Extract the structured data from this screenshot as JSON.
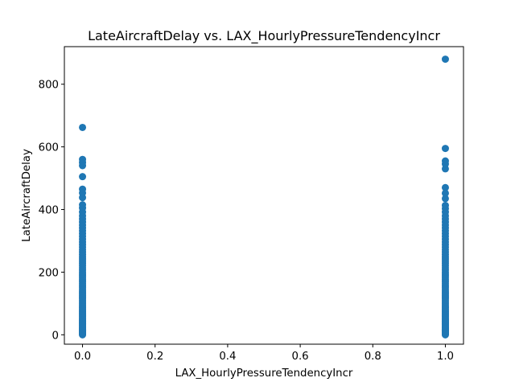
{
  "chart_data": {
    "type": "scatter",
    "title": "LateAircraftDelay vs. LAX_HourlyPressureTendencyIncr",
    "xlabel": "LAX_HourlyPressureTendencyIncr",
    "ylabel": "LateAircraftDelay",
    "xlim": [
      -0.05,
      1.05
    ],
    "ylim": [
      -30,
      920
    ],
    "xticks": [
      0.0,
      0.2,
      0.4,
      0.6,
      0.8,
      1.0
    ],
    "xtick_labels": [
      "0.0",
      "0.2",
      "0.4",
      "0.6",
      "0.8",
      "1.0"
    ],
    "yticks": [
      0,
      200,
      400,
      600,
      800
    ],
    "ytick_labels": [
      "0",
      "200",
      "400",
      "600",
      "800"
    ],
    "grid": false,
    "marker_color": "#1f77b4",
    "series": [
      {
        "x_values": [
          0,
          1
        ],
        "points": [
          [
            0,
            0
          ],
          [
            0,
            2
          ],
          [
            0,
            4
          ],
          [
            0,
            6
          ],
          [
            0,
            8
          ],
          [
            0,
            10
          ],
          [
            0,
            12
          ],
          [
            0,
            14
          ],
          [
            0,
            16
          ],
          [
            0,
            18
          ],
          [
            0,
            20
          ],
          [
            0,
            23
          ],
          [
            0,
            26
          ],
          [
            0,
            29
          ],
          [
            0,
            32
          ],
          [
            0,
            35
          ],
          [
            0,
            38
          ],
          [
            0,
            41
          ],
          [
            0,
            44
          ],
          [
            0,
            47
          ],
          [
            0,
            50
          ],
          [
            0,
            54
          ],
          [
            0,
            58
          ],
          [
            0,
            62
          ],
          [
            0,
            66
          ],
          [
            0,
            70
          ],
          [
            0,
            74
          ],
          [
            0,
            78
          ],
          [
            0,
            82
          ],
          [
            0,
            86
          ],
          [
            0,
            90
          ],
          [
            0,
            95
          ],
          [
            0,
            100
          ],
          [
            0,
            105
          ],
          [
            0,
            110
          ],
          [
            0,
            115
          ],
          [
            0,
            120
          ],
          [
            0,
            125
          ],
          [
            0,
            130
          ],
          [
            0,
            135
          ],
          [
            0,
            140
          ],
          [
            0,
            146
          ],
          [
            0,
            152
          ],
          [
            0,
            158
          ],
          [
            0,
            164
          ],
          [
            0,
            170
          ],
          [
            0,
            176
          ],
          [
            0,
            182
          ],
          [
            0,
            188
          ],
          [
            0,
            194
          ],
          [
            0,
            200
          ],
          [
            0,
            207
          ],
          [
            0,
            214
          ],
          [
            0,
            221
          ],
          [
            0,
            228
          ],
          [
            0,
            235
          ],
          [
            0,
            242
          ],
          [
            0,
            249
          ],
          [
            0,
            256
          ],
          [
            0,
            264
          ],
          [
            0,
            272
          ],
          [
            0,
            280
          ],
          [
            0,
            288
          ],
          [
            0,
            296
          ],
          [
            0,
            305
          ],
          [
            0,
            314
          ],
          [
            0,
            323
          ],
          [
            0,
            332
          ],
          [
            0,
            341
          ],
          [
            0,
            350
          ],
          [
            0,
            360
          ],
          [
            0,
            370
          ],
          [
            0,
            380
          ],
          [
            0,
            392
          ],
          [
            0,
            405
          ],
          [
            0,
            415
          ],
          [
            0,
            438
          ],
          [
            0,
            453
          ],
          [
            0,
            465
          ],
          [
            0,
            505
          ],
          [
            0,
            540
          ],
          [
            0,
            550
          ],
          [
            0,
            560
          ],
          [
            0,
            662
          ],
          [
            1,
            0
          ],
          [
            1,
            2
          ],
          [
            1,
            4
          ],
          [
            1,
            6
          ],
          [
            1,
            8
          ],
          [
            1,
            10
          ],
          [
            1,
            12
          ],
          [
            1,
            14
          ],
          [
            1,
            16
          ],
          [
            1,
            18
          ],
          [
            1,
            20
          ],
          [
            1,
            23
          ],
          [
            1,
            26
          ],
          [
            1,
            29
          ],
          [
            1,
            32
          ],
          [
            1,
            35
          ],
          [
            1,
            38
          ],
          [
            1,
            41
          ],
          [
            1,
            44
          ],
          [
            1,
            47
          ],
          [
            1,
            50
          ],
          [
            1,
            54
          ],
          [
            1,
            58
          ],
          [
            1,
            62
          ],
          [
            1,
            66
          ],
          [
            1,
            70
          ],
          [
            1,
            74
          ],
          [
            1,
            78
          ],
          [
            1,
            82
          ],
          [
            1,
            86
          ],
          [
            1,
            90
          ],
          [
            1,
            95
          ],
          [
            1,
            100
          ],
          [
            1,
            105
          ],
          [
            1,
            110
          ],
          [
            1,
            115
          ],
          [
            1,
            120
          ],
          [
            1,
            125
          ],
          [
            1,
            130
          ],
          [
            1,
            135
          ],
          [
            1,
            140
          ],
          [
            1,
            146
          ],
          [
            1,
            152
          ],
          [
            1,
            158
          ],
          [
            1,
            164
          ],
          [
            1,
            170
          ],
          [
            1,
            176
          ],
          [
            1,
            182
          ],
          [
            1,
            188
          ],
          [
            1,
            194
          ],
          [
            1,
            200
          ],
          [
            1,
            207
          ],
          [
            1,
            214
          ],
          [
            1,
            221
          ],
          [
            1,
            228
          ],
          [
            1,
            235
          ],
          [
            1,
            242
          ],
          [
            1,
            249
          ],
          [
            1,
            256
          ],
          [
            1,
            264
          ],
          [
            1,
            272
          ],
          [
            1,
            280
          ],
          [
            1,
            288
          ],
          [
            1,
            296
          ],
          [
            1,
            305
          ],
          [
            1,
            314
          ],
          [
            1,
            323
          ],
          [
            1,
            332
          ],
          [
            1,
            341
          ],
          [
            1,
            350
          ],
          [
            1,
            360
          ],
          [
            1,
            370
          ],
          [
            1,
            380
          ],
          [
            1,
            392
          ],
          [
            1,
            403
          ],
          [
            1,
            413
          ],
          [
            1,
            435
          ],
          [
            1,
            452
          ],
          [
            1,
            470
          ],
          [
            1,
            530
          ],
          [
            1,
            545
          ],
          [
            1,
            555
          ],
          [
            1,
            595
          ],
          [
            1,
            880
          ]
        ]
      }
    ]
  }
}
